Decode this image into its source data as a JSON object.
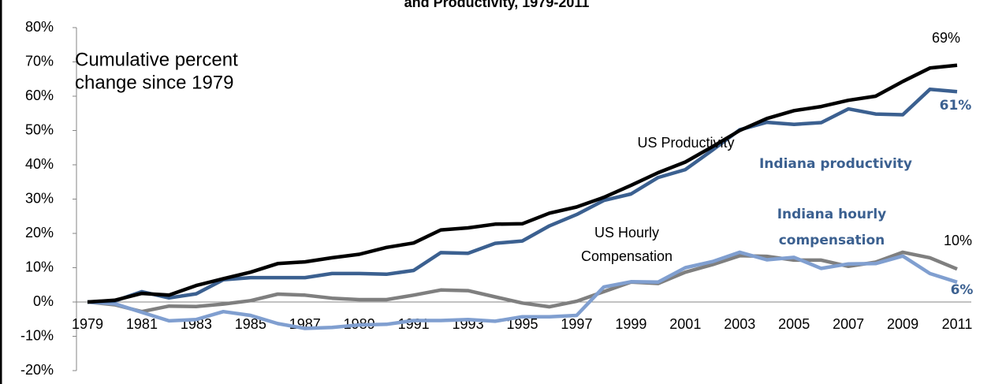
{
  "chart_data": {
    "type": "line",
    "title": "and Productivity, 1979-2011",
    "categories": [
      "1979",
      null,
      "1981",
      null,
      "1983",
      null,
      "1985",
      null,
      "1987",
      null,
      "1989",
      null,
      "1991",
      null,
      "1993",
      null,
      "1995",
      null,
      "1997",
      null,
      "1999",
      null,
      "2001",
      null,
      "2003",
      null,
      "2005",
      null,
      "2007",
      null,
      "2009",
      null,
      "2011"
    ],
    "ylim": [
      -20,
      80
    ],
    "yticks": [
      {
        "value": -20,
        "label": "-20%"
      },
      {
        "value": -10,
        "label": "-10%"
      },
      {
        "value": 0,
        "label": "0%"
      },
      {
        "value": 10,
        "label": "10%"
      },
      {
        "value": 20,
        "label": "20%"
      },
      {
        "value": 30,
        "label": "30%"
      },
      {
        "value": 40,
        "label": "40%"
      },
      {
        "value": 50,
        "label": "50%"
      },
      {
        "value": 60,
        "label": "60%"
      },
      {
        "value": 70,
        "label": "70%"
      },
      {
        "value": 80,
        "label": "80%"
      }
    ],
    "grid": false,
    "series": [
      {
        "name": "US Productivity",
        "color": "#000000",
        "values": [
          0,
          0.5,
          2.5,
          2,
          4.8,
          6.8,
          8.7,
          11.2,
          11.7,
          12.9,
          13.9,
          15.9,
          17.2,
          21,
          21.6,
          22.7,
          22.8,
          25.9,
          27.7,
          30.5,
          34,
          37.7,
          40.8,
          45.3,
          50,
          53.5,
          55.8,
          57,
          58.8,
          60,
          64.3,
          68.2,
          69
        ]
      },
      {
        "name": "Indiana productivity",
        "color": "#3b6090",
        "values": [
          0,
          0.3,
          3,
          1.2,
          2.4,
          6.5,
          7.1,
          7.1,
          7.1,
          8.3,
          8.3,
          8.1,
          9.2,
          14.4,
          14.2,
          17.1,
          17.8,
          22.2,
          25.5,
          29.6,
          31.5,
          36.3,
          38.6,
          44.3,
          50.2,
          52.4,
          51.8,
          52.3,
          56.3,
          54.8,
          54.6,
          62,
          61.3
        ]
      },
      {
        "name": "US Hourly Compensation",
        "color": "#7f7f7f",
        "values": [
          0,
          -0.8,
          -2.8,
          -1.2,
          -1.3,
          -0.6,
          0.4,
          2.3,
          2,
          1.1,
          0.7,
          0.7,
          2,
          3.5,
          3.3,
          1.5,
          -0.3,
          -1.4,
          0.2,
          3,
          5.8,
          5.4,
          8.7,
          10.9,
          13.5,
          13.3,
          12.2,
          12.2,
          10.4,
          11.6,
          14.5,
          12.9,
          9.6
        ]
      },
      {
        "name": "Indiana hourly compensation",
        "color": "#809fd0",
        "values": [
          0,
          -0.5,
          -3,
          -5.5,
          -5.1,
          -2.8,
          -3.9,
          -6.3,
          -7.7,
          -7.4,
          -6.7,
          -6.5,
          -5.4,
          -5.4,
          -5.1,
          -5.6,
          -4.3,
          -4.3,
          -3.9,
          4.4,
          5.9,
          5.8,
          10,
          11.8,
          14.5,
          12.3,
          13,
          9.8,
          11.1,
          11.2,
          13.4,
          8.3,
          5.8
        ]
      }
    ],
    "annotations": [
      {
        "text": [
          "Cumulative percent",
          "change since 1979"
        ]
      },
      {
        "text": [
          "US Productivity"
        ]
      },
      {
        "text": [
          "Indiana productivity"
        ],
        "color": "#3b6090"
      },
      {
        "text": [
          "US Hourly",
          "Compensation"
        ]
      },
      {
        "text": [
          "Indiana hourly",
          "compensation"
        ],
        "color": "#3b6090"
      },
      {
        "text": [
          "69%"
        ]
      },
      {
        "text": [
          "61%"
        ],
        "color": "#3b6090"
      },
      {
        "text": [
          "10%"
        ]
      },
      {
        "text": [
          "6%"
        ],
        "color": "#3b6090"
      }
    ]
  }
}
